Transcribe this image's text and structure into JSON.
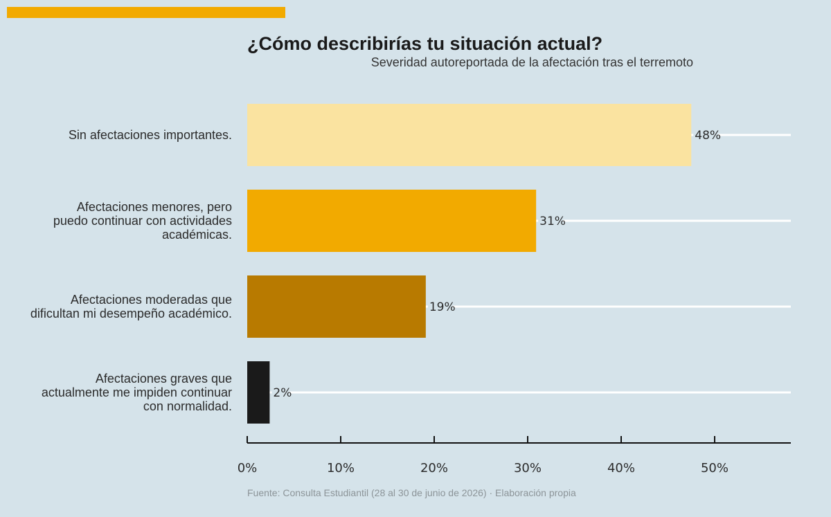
{
  "header": {
    "accent_color": "#f2aa00"
  },
  "chart_data": {
    "type": "bar",
    "orientation": "horizontal",
    "title": "¿Cómo describirías tu situación actual?",
    "subtitle": "Severidad autoreportada de la afectación tras el terremoto",
    "categories": [
      [
        "Sin afectaciones importantes."
      ],
      [
        "Afectaciones menores, pero",
        "puedo continuar con actividades",
        "académicas."
      ],
      [
        "Afectaciones moderadas que",
        "dificultan mi desempeño académico."
      ],
      [
        "Afectaciones graves que",
        "actualmente me impiden continuar",
        "con normalidad."
      ]
    ],
    "values": [
      47.5,
      30.9,
      19.1,
      2.4
    ],
    "value_labels": [
      "48%",
      "31%",
      "19%",
      "2%"
    ],
    "colors": [
      "#fae3a0",
      "#f2aa00",
      "#b87a00",
      "#1a1a1a"
    ],
    "xlim": [
      0,
      58
    ],
    "xticks": [
      0,
      10,
      20,
      30,
      40,
      50
    ],
    "xtick_labels": [
      "0%",
      "10%",
      "20%",
      "30%",
      "40%",
      "50%"
    ],
    "grid": "guide lines per bar",
    "legend": "none",
    "source": "Fuente: Consulta Estudiantil (28 al 30 de junio de 2026) · Elaboración propia"
  }
}
